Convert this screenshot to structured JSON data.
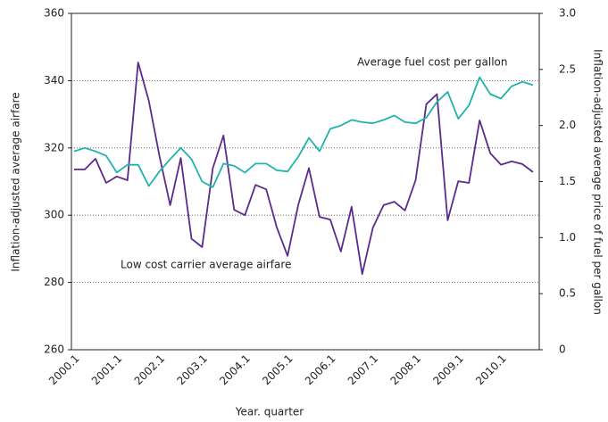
{
  "chart_data": {
    "type": "line",
    "x_label": "Year. quarter",
    "y_label": "Inflation-adjusted average airfare",
    "y2_label": "Inflation-adjusted average price of fuel per gallon",
    "annotations": [
      "Average fuel cost per gallon",
      "Low cost carrier average airfare"
    ],
    "categories": [
      "2000.1",
      null,
      null,
      null,
      "2001.1",
      null,
      null,
      null,
      "2002.1",
      null,
      null,
      null,
      "2003.1",
      null,
      null,
      null,
      "2004.1",
      null,
      null,
      null,
      "2005.1",
      null,
      null,
      null,
      "2006.1",
      null,
      null,
      null,
      "2007.1",
      null,
      null,
      null,
      "2008.1",
      null,
      null,
      null,
      "2009.1",
      null,
      null,
      null,
      "2010.1",
      null,
      null,
      null
    ],
    "series": [
      {
        "name": "Low cost carrier average airfare",
        "color": "#5b2a8e",
        "axis": "y",
        "values": [
          313.6,
          313.6,
          316.8,
          309.6,
          311.5,
          310.4,
          345.4,
          334,
          317.6,
          303,
          317,
          293,
          290.5,
          314,
          323.7,
          301.6,
          300,
          309,
          307.7,
          296.3,
          287.9,
          303,
          314,
          299.5,
          298.7,
          289.2,
          302.5,
          282.5,
          296.3,
          303,
          304,
          301.4,
          310.4,
          333,
          336,
          298.5,
          310.1,
          309.6,
          328.2,
          318.4,
          315,
          316,
          315.2,
          312.8
        ]
      },
      {
        "name": "Average fuel cost per gallon",
        "color": "#1fb3ad",
        "axis": "y2",
        "values": [
          1.77,
          1.8,
          1.77,
          1.73,
          1.58,
          1.65,
          1.65,
          1.46,
          1.59,
          1.7,
          1.8,
          1.7,
          1.5,
          1.45,
          1.66,
          1.64,
          1.58,
          1.66,
          1.66,
          1.6,
          1.59,
          1.72,
          1.89,
          1.77,
          1.97,
          2.0,
          2.05,
          2.03,
          2.02,
          2.05,
          2.09,
          2.03,
          2.02,
          2.07,
          2.21,
          2.3,
          2.06,
          2.18,
          2.43,
          2.28,
          2.24,
          2.35,
          2.39,
          2.36
        ]
      }
    ],
    "ylim": [
      260,
      360
    ],
    "yticks": [
      260,
      280,
      300,
      320,
      340,
      360
    ],
    "y2lim": [
      0,
      3
    ],
    "y2ticks": [
      0,
      0.5,
      {
        "value": 1,
        "label": "1.0"
      },
      1.5,
      {
        "value": 2,
        "label": "2.0"
      },
      2.5,
      {
        "value": 3,
        "label": "3.0"
      }
    ],
    "grid": true
  }
}
